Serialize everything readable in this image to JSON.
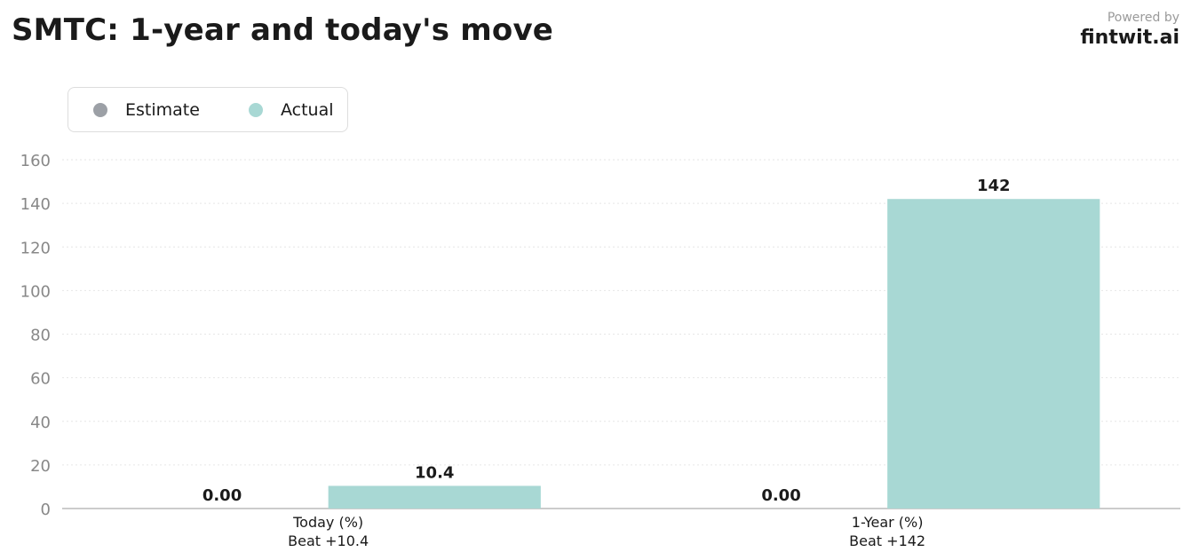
{
  "header": {
    "title": "SMTC: 1-year and today's move",
    "powered_by": "Powered by",
    "brand": "fintwit.ai"
  },
  "legend": {
    "items": [
      {
        "label": "Estimate",
        "color": "#9ca0a6"
      },
      {
        "label": "Actual",
        "color": "#a8d8d4"
      }
    ]
  },
  "chart_data": {
    "type": "bar",
    "title": "SMTC: 1-year and today's move",
    "categories": [
      "Today (%)",
      "1-Year (%)"
    ],
    "category_sublabels": [
      "Beat +10.4",
      "Beat +142"
    ],
    "series": [
      {
        "name": "Estimate",
        "values": [
          0,
          0
        ],
        "value_labels": [
          "0.00",
          "0.00"
        ],
        "color": "#9ca0a6"
      },
      {
        "name": "Actual",
        "values": [
          10.4,
          142
        ],
        "value_labels": [
          "10.4",
          "142"
        ],
        "color": "#a8d8d4"
      }
    ],
    "yticks": [
      0,
      20,
      40,
      60,
      80,
      100,
      120,
      140,
      160
    ],
    "ylim": [
      0,
      160
    ],
    "grid": true,
    "legend_position": "top-left"
  }
}
